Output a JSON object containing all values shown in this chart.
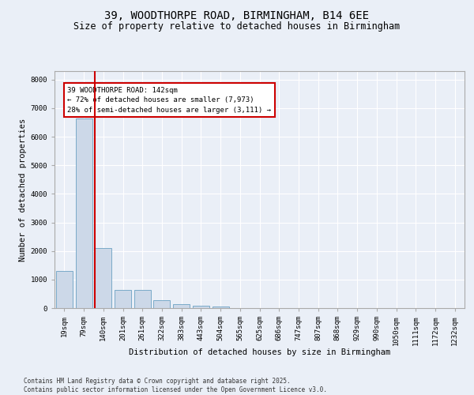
{
  "title1": "39, WOODTHORPE ROAD, BIRMINGHAM, B14 6EE",
  "title2": "Size of property relative to detached houses in Birmingham",
  "xlabel": "Distribution of detached houses by size in Birmingham",
  "ylabel": "Number of detached properties",
  "footnote": "Contains HM Land Registry data © Crown copyright and database right 2025.\nContains public sector information licensed under the Open Government Licence v3.0.",
  "categories": [
    "19sqm",
    "79sqm",
    "140sqm",
    "201sqm",
    "261sqm",
    "322sqm",
    "383sqm",
    "443sqm",
    "504sqm",
    "565sqm",
    "625sqm",
    "686sqm",
    "747sqm",
    "807sqm",
    "868sqm",
    "929sqm",
    "990sqm",
    "1050sqm",
    "1111sqm",
    "1172sqm",
    "1232sqm"
  ],
  "values": [
    1300,
    6650,
    2100,
    650,
    650,
    280,
    130,
    90,
    50,
    10,
    5,
    2,
    1,
    0,
    0,
    0,
    0,
    0,
    0,
    0,
    0
  ],
  "bar_color": "#ccd8e8",
  "bar_edge_color": "#7aaac8",
  "highlight_line_color": "#cc0000",
  "annotation_text": "39 WOODTHORPE ROAD: 142sqm\n← 72% of detached houses are smaller (7,973)\n28% of semi-detached houses are larger (3,111) →",
  "annotation_box_color": "#cc0000",
  "ylim": [
    0,
    8300
  ],
  "yticks": [
    0,
    1000,
    2000,
    3000,
    4000,
    5000,
    6000,
    7000,
    8000
  ],
  "bg_color": "#eaeff7",
  "plot_bg_color": "#eaeff7",
  "grid_color": "#ffffff",
  "title_fontsize": 10,
  "subtitle_fontsize": 8.5,
  "axis_label_fontsize": 7.5,
  "tick_fontsize": 6.5,
  "footnote_fontsize": 5.5
}
